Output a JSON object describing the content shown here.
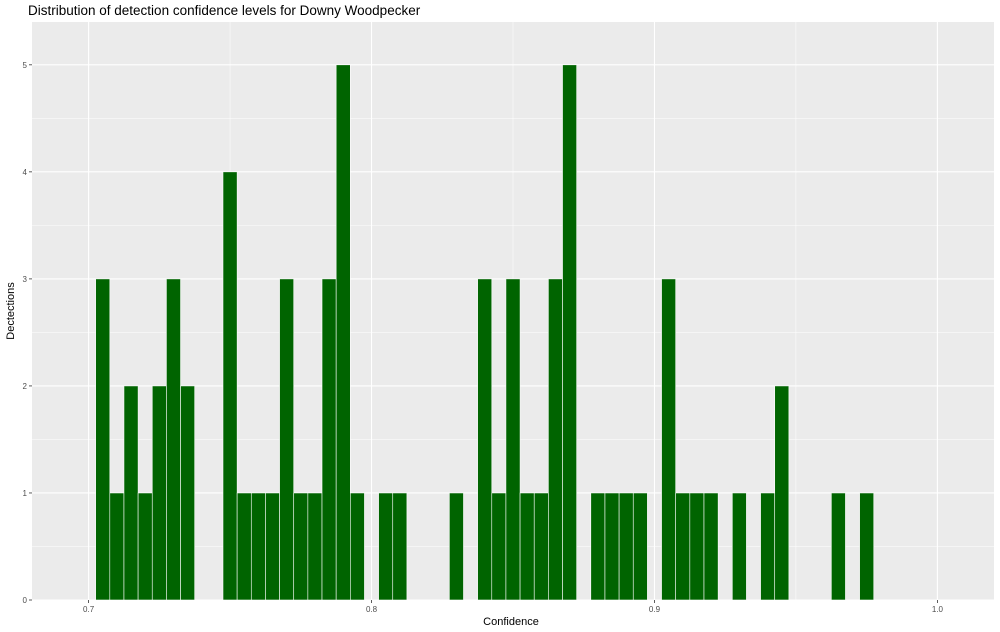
{
  "chart_data": {
    "type": "bar",
    "title": "Distribution of detection confidence levels for Downy Woodpecker",
    "xlabel": "Confidence",
    "ylabel": "Dectections",
    "xlim": [
      0.68,
      1.02
    ],
    "ylim": [
      0,
      5.4
    ],
    "bin_width": 0.005,
    "xticks": [
      "0.7",
      "0.8",
      "0.9",
      "1.0"
    ],
    "yticks": [
      "0",
      "1",
      "2",
      "3",
      "4",
      "5"
    ],
    "grid": true,
    "legend": "none",
    "colors": {
      "bar_fill": "#006400",
      "bar_outline": "#ffffff",
      "panel": "#ebebeb",
      "grid": "#ffffff"
    },
    "x": [
      0.705,
      0.71,
      0.715,
      0.72,
      0.725,
      0.73,
      0.735,
      0.75,
      0.755,
      0.76,
      0.765,
      0.77,
      0.775,
      0.78,
      0.785,
      0.79,
      0.795,
      0.805,
      0.81,
      0.83,
      0.84,
      0.845,
      0.85,
      0.855,
      0.86,
      0.865,
      0.87,
      0.88,
      0.885,
      0.89,
      0.895,
      0.905,
      0.91,
      0.915,
      0.92,
      0.93,
      0.94,
      0.945,
      0.965,
      0.975
    ],
    "values": [
      3,
      1,
      2,
      1,
      2,
      3,
      2,
      4,
      1,
      1,
      1,
      3,
      1,
      1,
      3,
      5,
      1,
      1,
      1,
      1,
      3,
      1,
      3,
      1,
      1,
      3,
      5,
      1,
      1,
      1,
      1,
      3,
      1,
      1,
      1,
      1,
      1,
      2,
      1,
      1
    ]
  }
}
